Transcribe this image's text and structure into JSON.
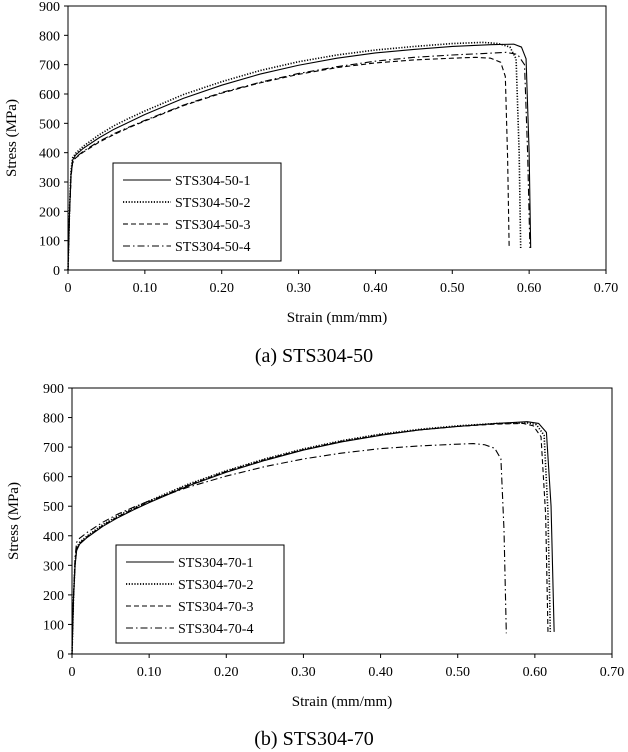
{
  "chart_data": [
    {
      "type": "line",
      "caption": "(a) STS304-50",
      "xlabel": "Strain (mm/mm)",
      "ylabel": "Stress (MPa)",
      "xlim": [
        0,
        0.7
      ],
      "ylim": [
        0,
        900
      ],
      "xticks": [
        "0",
        "0.10",
        "0.20",
        "0.30",
        "0.40",
        "0.50",
        "0.60",
        "0.70"
      ],
      "yticks": [
        "0",
        "100",
        "200",
        "300",
        "400",
        "500",
        "600",
        "700",
        "800",
        "900"
      ],
      "legend_position": "bottom-left",
      "series": [
        {
          "name": "STS304-50-1",
          "style": "solid",
          "x": [
            0,
            0.002,
            0.004,
            0.006,
            0.01,
            0.02,
            0.04,
            0.06,
            0.08,
            0.1,
            0.15,
            0.2,
            0.25,
            0.3,
            0.35,
            0.4,
            0.45,
            0.5,
            0.55,
            0.58,
            0.59,
            0.596,
            0.6,
            0.602
          ],
          "y": [
            0,
            200,
            330,
            375,
            392,
            415,
            450,
            480,
            505,
            530,
            585,
            630,
            668,
            698,
            722,
            740,
            752,
            762,
            768,
            770,
            760,
            720,
            400,
            75
          ]
        },
        {
          "name": "STS304-50-2",
          "style": "dotted",
          "x": [
            0,
            0.002,
            0.004,
            0.006,
            0.01,
            0.02,
            0.04,
            0.06,
            0.08,
            0.1,
            0.15,
            0.2,
            0.25,
            0.3,
            0.35,
            0.4,
            0.45,
            0.5,
            0.54,
            0.56,
            0.575,
            0.583,
            0.587,
            0.589
          ],
          "y": [
            0,
            210,
            340,
            382,
            398,
            422,
            460,
            492,
            518,
            542,
            598,
            642,
            680,
            710,
            733,
            750,
            762,
            772,
            776,
            772,
            760,
            720,
            400,
            75
          ]
        },
        {
          "name": "STS304-50-3",
          "style": "dashed",
          "x": [
            0,
            0.002,
            0.004,
            0.006,
            0.01,
            0.02,
            0.04,
            0.06,
            0.08,
            0.1,
            0.15,
            0.2,
            0.25,
            0.3,
            0.35,
            0.4,
            0.45,
            0.5,
            0.53,
            0.55,
            0.563,
            0.569,
            0.572,
            0.574
          ],
          "y": [
            0,
            195,
            320,
            365,
            382,
            402,
            435,
            462,
            486,
            508,
            560,
            603,
            638,
            667,
            690,
            706,
            716,
            722,
            725,
            722,
            708,
            660,
            380,
            75
          ]
        },
        {
          "name": "STS304-50-4",
          "style": "dashdot",
          "x": [
            0,
            0.002,
            0.004,
            0.006,
            0.01,
            0.02,
            0.04,
            0.06,
            0.08,
            0.1,
            0.15,
            0.2,
            0.25,
            0.3,
            0.35,
            0.4,
            0.45,
            0.5,
            0.54,
            0.57,
            0.585,
            0.594,
            0.598,
            0.601
          ],
          "y": [
            0,
            190,
            320,
            368,
            384,
            405,
            438,
            465,
            488,
            510,
            562,
            605,
            640,
            670,
            693,
            712,
            725,
            733,
            738,
            742,
            735,
            700,
            400,
            75
          ]
        }
      ]
    },
    {
      "type": "line",
      "caption": "(b) STS304-70",
      "xlabel": "Strain (mm/mm)",
      "ylabel": "Stress (MPa)",
      "xlim": [
        0,
        0.7
      ],
      "ylim": [
        0,
        900
      ],
      "xticks": [
        "0",
        "0.10",
        "0.20",
        "0.30",
        "0.40",
        "0.50",
        "0.60",
        "0.70"
      ],
      "yticks": [
        "0",
        "100",
        "200",
        "300",
        "400",
        "500",
        "600",
        "700",
        "800",
        "900"
      ],
      "legend_position": "bottom-left",
      "series": [
        {
          "name": "STS304-70-1",
          "style": "solid",
          "x": [
            0,
            0.002,
            0.004,
            0.006,
            0.01,
            0.02,
            0.04,
            0.06,
            0.08,
            0.1,
            0.15,
            0.2,
            0.25,
            0.3,
            0.35,
            0.4,
            0.45,
            0.5,
            0.55,
            0.59,
            0.605,
            0.615,
            0.621,
            0.625
          ],
          "y": [
            0,
            190,
            300,
            350,
            372,
            395,
            432,
            462,
            488,
            512,
            568,
            615,
            655,
            690,
            718,
            740,
            758,
            770,
            780,
            786,
            780,
            750,
            500,
            75
          ]
        },
        {
          "name": "STS304-70-2",
          "style": "dotted",
          "x": [
            0,
            0.002,
            0.004,
            0.006,
            0.01,
            0.02,
            0.04,
            0.06,
            0.08,
            0.1,
            0.15,
            0.2,
            0.25,
            0.3,
            0.35,
            0.4,
            0.45,
            0.5,
            0.55,
            0.59,
            0.602,
            0.612,
            0.617,
            0.62
          ],
          "y": [
            0,
            195,
            310,
            358,
            378,
            400,
            438,
            468,
            494,
            518,
            574,
            620,
            660,
            694,
            722,
            744,
            760,
            772,
            780,
            782,
            776,
            740,
            480,
            75
          ]
        },
        {
          "name": "STS304-70-3",
          "style": "dashed",
          "x": [
            0,
            0.002,
            0.004,
            0.006,
            0.01,
            0.02,
            0.04,
            0.06,
            0.08,
            0.1,
            0.15,
            0.2,
            0.25,
            0.3,
            0.35,
            0.4,
            0.45,
            0.5,
            0.55,
            0.585,
            0.598,
            0.608,
            0.614,
            0.617
          ],
          "y": [
            0,
            192,
            305,
            355,
            375,
            398,
            435,
            465,
            491,
            515,
            571,
            618,
            658,
            692,
            720,
            742,
            758,
            770,
            778,
            780,
            772,
            735,
            470,
            75
          ]
        },
        {
          "name": "STS304-70-4",
          "style": "dashdot",
          "x": [
            0,
            0.002,
            0.004,
            0.006,
            0.01,
            0.02,
            0.04,
            0.06,
            0.08,
            0.1,
            0.15,
            0.2,
            0.25,
            0.3,
            0.35,
            0.4,
            0.45,
            0.5,
            0.52,
            0.535,
            0.548,
            0.556,
            0.56,
            0.563
          ],
          "y": [
            0,
            200,
            330,
            378,
            392,
            412,
            446,
            474,
            497,
            518,
            564,
            602,
            634,
            660,
            680,
            695,
            704,
            710,
            712,
            708,
            696,
            660,
            420,
            70
          ]
        }
      ]
    }
  ]
}
